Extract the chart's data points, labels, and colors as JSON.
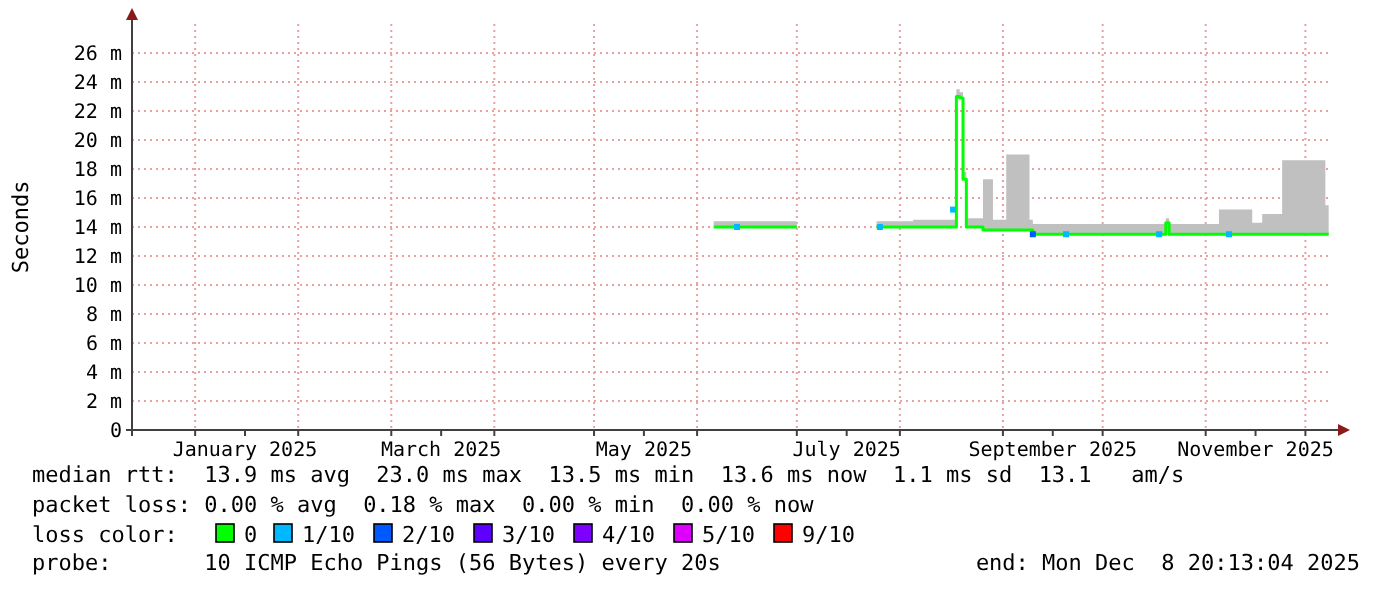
{
  "chart_data": {
    "type": "line",
    "ylabel": "Seconds",
    "xlim": [
      "2024-12-13",
      "2025-12-09"
    ],
    "ylim": [
      0,
      28
    ],
    "yticks": [
      0,
      {
        "value": 2,
        "label": "2 m"
      },
      {
        "value": 4,
        "label": "4 m"
      },
      {
        "value": 6,
        "label": "6 m"
      },
      {
        "value": 8,
        "label": "8 m"
      },
      {
        "value": 10,
        "label": "10 m"
      },
      {
        "value": 12,
        "label": "12 m"
      },
      {
        "value": 14,
        "label": "14 m"
      },
      {
        "value": 16,
        "label": "16 m"
      },
      {
        "value": 18,
        "label": "18 m"
      },
      {
        "value": 20,
        "label": "20 m"
      },
      {
        "value": 22,
        "label": "22 m"
      },
      {
        "value": 24,
        "label": "24 m"
      },
      {
        "value": 26,
        "label": "26 m"
      }
    ],
    "xticks": [
      {
        "value": "2025-01-01",
        "label": null
      },
      {
        "value": "2025-01-16",
        "label": "January 2025"
      },
      {
        "value": "2025-02-01",
        "label": null
      },
      {
        "value": "2025-03-01",
        "label": null
      },
      {
        "value": "2025-03-16",
        "label": "March 2025"
      },
      {
        "value": "2025-04-01",
        "label": null
      },
      {
        "value": "2025-05-01",
        "label": null
      },
      {
        "value": "2025-05-16",
        "label": "May 2025"
      },
      {
        "value": "2025-06-01",
        "label": null
      },
      {
        "value": "2025-07-01",
        "label": null
      },
      {
        "value": "2025-07-16",
        "label": "July 2025"
      },
      {
        "value": "2025-08-01",
        "label": null
      },
      {
        "value": "2025-09-01",
        "label": null
      },
      {
        "value": "2025-09-16",
        "label": "September 2025"
      },
      {
        "value": "2025-10-01",
        "label": null
      },
      {
        "value": "2025-11-01",
        "label": null
      },
      {
        "value": "2025-11-16",
        "label": "November 2025"
      },
      {
        "value": "2025-12-01",
        "label": null
      }
    ],
    "grid": true,
    "legend": "bottom",
    "legend_title": "loss color:",
    "series": [
      {
        "name": "0",
        "color": "#00ff00",
        "x": [
          "2025-06-06",
          "2025-06-20",
          "2025-07-01",
          "2025-07-10",
          "2025-07-25",
          "2025-08-05",
          "2025-08-17",
          "2025-08-18",
          "2025-08-19",
          "2025-08-20",
          "2025-08-21",
          "2025-08-26",
          "2025-08-29",
          "2025-09-02",
          "2025-09-09",
          "2025-09-10",
          "2025-10-19",
          "2025-10-20",
          "2025-10-21",
          "2025-11-05",
          "2025-11-15",
          "2025-11-18",
          "2025-11-24",
          "2025-12-07",
          "2025-12-08"
        ],
        "values": [
          14.0,
          14.0,
          14.0,
          null,
          14.0,
          14.0,
          14.0,
          23.0,
          22.9,
          17.3,
          14.0,
          13.8,
          13.8,
          13.8,
          13.8,
          13.5,
          13.5,
          14.3,
          13.5,
          13.5,
          13.5,
          13.5,
          13.5,
          13.5,
          13.5
        ],
        "lower": [
          14.0,
          14.0,
          14.0,
          null,
          14.0,
          14.0,
          14.0,
          23.0,
          22.9,
          17.3,
          14.0,
          13.8,
          13.8,
          13.8,
          13.8,
          13.5,
          13.5,
          14.3,
          13.5,
          13.5,
          13.5,
          13.5,
          13.5,
          13.5,
          13.5
        ],
        "upper": [
          14.4,
          14.4,
          14.4,
          null,
          14.4,
          14.5,
          14.5,
          23.5,
          23.3,
          17.8,
          14.6,
          17.3,
          14.5,
          19.0,
          14.5,
          14.2,
          14.2,
          14.6,
          14.2,
          15.2,
          14.3,
          14.9,
          18.6,
          15.5,
          14.3
        ]
      },
      {
        "name": "1/10",
        "type": "scatter",
        "color": "#00b8ff",
        "marker": "square",
        "x": [
          "2025-06-13",
          "2025-07-26",
          "2025-08-17",
          "2025-09-20",
          "2025-10-18",
          "2025-11-08"
        ],
        "values": [
          14.0,
          14.0,
          15.2,
          13.5,
          13.5,
          13.5
        ]
      },
      {
        "name": "2/10",
        "type": "scatter",
        "color": "#0059ff",
        "marker": "square",
        "x": [
          "2025-09-10"
        ],
        "values": [
          13.5
        ]
      },
      {
        "name": "3/10",
        "type": "scatter",
        "color": "#5e00ff"
      },
      {
        "name": "4/10",
        "type": "scatter",
        "color": "#7e00ff"
      },
      {
        "name": "5/10",
        "type": "scatter",
        "color": "#dd00ff"
      },
      {
        "name": "9/10",
        "type": "scatter",
        "color": "#ff0000"
      }
    ],
    "annotations": [
      "median rtt:  13.9 ms avg  23.0 ms max  13.5 ms min  13.6 ms now  1.1 ms sd  13.1   am/s",
      "packet loss: 0.00 % avg  0.18 % max  0.00 % min  0.00 % now",
      "probe:       10 ICMP Echo Pings (56 Bytes) every 20s",
      "end: Mon Dec  8 20:13:04 2025"
    ]
  }
}
